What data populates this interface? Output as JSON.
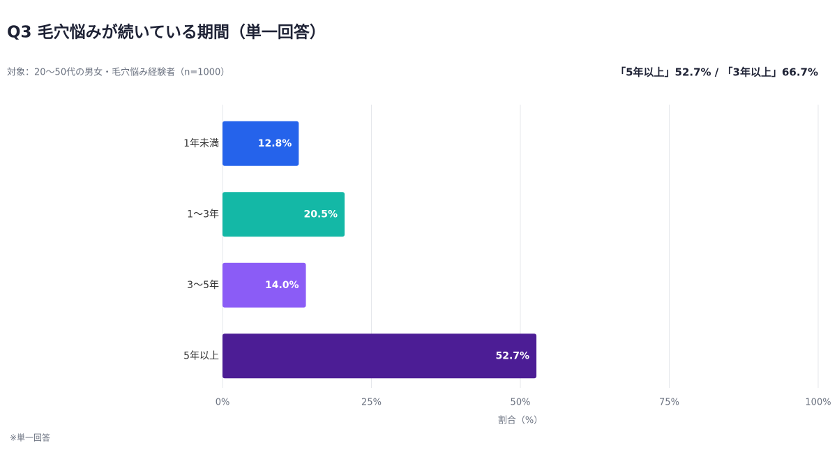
{
  "chart_data": {
    "type": "bar",
    "orientation": "horizontal",
    "title": "Q3 毛穴悩みが続いている期間（単一回答）",
    "subtitle": "対象：20〜50代の男女・毛穴悩み経験者（n=1000）",
    "highlight": "「5年以上」52.7% / 「3年以上」66.7%",
    "categories": [
      "1年未満",
      "1〜3年",
      "3〜5年",
      "5年以上"
    ],
    "values": [
      12.8,
      20.5,
      14.0,
      52.7
    ],
    "value_labels": [
      "12.8%",
      "20.5%",
      "14.0%",
      "52.7%"
    ],
    "colors": [
      "#2563eb",
      "#14b8a6",
      "#8b5cf6",
      "#4c1d95"
    ],
    "xlim": [
      0,
      100
    ],
    "xticks": [
      {
        "value": 0,
        "label": "0%"
      },
      {
        "value": 25,
        "label": "25%"
      },
      {
        "value": 50,
        "label": "50%"
      },
      {
        "value": 75,
        "label": "75%"
      },
      {
        "value": 100,
        "label": "100%"
      }
    ],
    "xlabel": "割合（%）",
    "grid": true,
    "footnote": "※単一回答"
  }
}
